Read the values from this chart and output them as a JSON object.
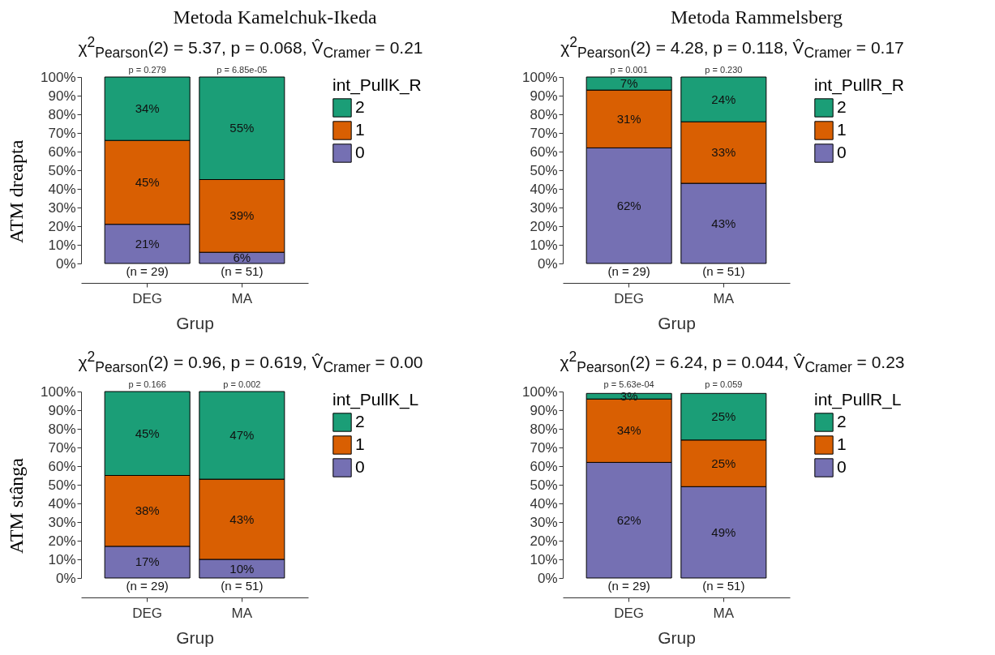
{
  "chart_data": [
    {
      "type": "bar",
      "title": "Metoda Kamelchuk-Ikeda",
      "subtitle": "χ$^{2}$$_{Pearson}$(2) = 5.37, p = 0.068, V̂$_{Cramer}$ = 0.21",
      "ylabel": "ATM dreapta",
      "xlabel": "Grup",
      "legend_title": "int_PullK_R",
      "legend": "right",
      "stacked": true,
      "categories": [
        "DEG",
        "MA"
      ],
      "series": [
        {
          "name": "0",
          "color": "#7570b3",
          "values": [
            21,
            6
          ],
          "value_labels": [
            "21%",
            "6%"
          ]
        },
        {
          "name": "1",
          "color": "#d95f02",
          "values": [
            45,
            39
          ],
          "value_labels": [
            "45%",
            "39%"
          ]
        },
        {
          "name": "2",
          "color": "#1b9e77",
          "values": [
            34,
            55
          ],
          "value_labels": [
            "34%",
            "55%"
          ]
        }
      ],
      "ylim": [
        0,
        100
      ],
      "yticks": [
        {
          "value": 0,
          "label": "0%"
        },
        {
          "value": 10,
          "label": "10%"
        },
        {
          "value": 20,
          "label": "20%"
        },
        {
          "value": 30,
          "label": "30%"
        },
        {
          "value": 40,
          "label": "40%"
        },
        {
          "value": 50,
          "label": "50%"
        },
        {
          "value": 60,
          "label": "60%"
        },
        {
          "value": 70,
          "label": "70%"
        },
        {
          "value": 80,
          "label": "80%"
        },
        {
          "value": 90,
          "label": "90%"
        },
        {
          "value": 100,
          "label": "100%"
        }
      ],
      "annotations": [
        {
          "text": "p = 0.279",
          "x": "DEG",
          "y": 100
        },
        {
          "text": "p = 6.85e-05",
          "x": "MA",
          "y": 100
        },
        {
          "text": "(n = 29)",
          "x": "DEG",
          "y": 0
        },
        {
          "text": "(n = 51)",
          "x": "MA",
          "y": 0
        }
      ]
    },
    {
      "type": "bar",
      "title": "Metoda Rammelsberg",
      "subtitle": "χ$^{2}$$_{Pearson}$(2) = 4.28, p = 0.118, V̂$_{Cramer}$ = 0.17",
      "xlabel": "Grup",
      "legend_title": "int_PullR_R",
      "legend": "right",
      "stacked": true,
      "categories": [
        "DEG",
        "MA"
      ],
      "series": [
        {
          "name": "0",
          "color": "#7570b3",
          "values": [
            62,
            43
          ],
          "value_labels": [
            "62%",
            "43%"
          ]
        },
        {
          "name": "1",
          "color": "#d95f02",
          "values": [
            31,
            33
          ],
          "value_labels": [
            "31%",
            "33%"
          ]
        },
        {
          "name": "2",
          "color": "#1b9e77",
          "values": [
            7,
            24
          ],
          "value_labels": [
            "7%",
            "24%"
          ]
        }
      ],
      "ylim": [
        0,
        100
      ],
      "yticks": [
        {
          "value": 0,
          "label": "0%"
        },
        {
          "value": 10,
          "label": "10%"
        },
        {
          "value": 20,
          "label": "20%"
        },
        {
          "value": 30,
          "label": "30%"
        },
        {
          "value": 40,
          "label": "40%"
        },
        {
          "value": 50,
          "label": "50%"
        },
        {
          "value": 60,
          "label": "60%"
        },
        {
          "value": 70,
          "label": "70%"
        },
        {
          "value": 80,
          "label": "80%"
        },
        {
          "value": 90,
          "label": "90%"
        },
        {
          "value": 100,
          "label": "100%"
        }
      ],
      "annotations": [
        {
          "text": "p = 0.001",
          "x": "DEG",
          "y": 100
        },
        {
          "text": "p = 0.230",
          "x": "MA",
          "y": 100
        },
        {
          "text": "(n = 29)",
          "x": "DEG",
          "y": 0
        },
        {
          "text": "(n = 51)",
          "x": "MA",
          "y": 0
        }
      ]
    },
    {
      "type": "bar",
      "subtitle": "χ$^{2}$$_{Pearson}$(2) = 0.96, p = 0.619, V̂$_{Cramer}$ = 0.00",
      "ylabel": "ATM stânga",
      "xlabel": "Grup",
      "legend_title": "int_PullK_L",
      "legend": "right",
      "stacked": true,
      "categories": [
        "DEG",
        "MA"
      ],
      "series": [
        {
          "name": "0",
          "color": "#7570b3",
          "values": [
            17,
            10
          ],
          "value_labels": [
            "17%",
            "10%"
          ]
        },
        {
          "name": "1",
          "color": "#d95f02",
          "values": [
            38,
            43
          ],
          "value_labels": [
            "38%",
            "43%"
          ]
        },
        {
          "name": "2",
          "color": "#1b9e77",
          "values": [
            45,
            47
          ],
          "value_labels": [
            "45%",
            "47%"
          ]
        }
      ],
      "ylim": [
        0,
        100
      ],
      "yticks": [
        {
          "value": 0,
          "label": "0%"
        },
        {
          "value": 10,
          "label": "10%"
        },
        {
          "value": 20,
          "label": "20%"
        },
        {
          "value": 30,
          "label": "30%"
        },
        {
          "value": 40,
          "label": "40%"
        },
        {
          "value": 50,
          "label": "50%"
        },
        {
          "value": 60,
          "label": "60%"
        },
        {
          "value": 70,
          "label": "70%"
        },
        {
          "value": 80,
          "label": "80%"
        },
        {
          "value": 90,
          "label": "90%"
        },
        {
          "value": 100,
          "label": "100%"
        }
      ],
      "annotations": [
        {
          "text": "p = 0.166",
          "x": "DEG",
          "y": 100
        },
        {
          "text": "p = 0.002",
          "x": "MA",
          "y": 100
        },
        {
          "text": "(n = 29)",
          "x": "DEG",
          "y": 0
        },
        {
          "text": "(n = 51)",
          "x": "MA",
          "y": 0
        }
      ]
    },
    {
      "type": "bar",
      "subtitle": "χ$^{2}$$_{Pearson}$(2) = 6.24, p = 0.044, V̂$_{Cramer}$ = 0.23",
      "xlabel": "Grup",
      "legend_title": "int_PullR_L",
      "legend": "right",
      "stacked": true,
      "categories": [
        "DEG",
        "MA"
      ],
      "series": [
        {
          "name": "0",
          "color": "#7570b3",
          "values": [
            62,
            49
          ],
          "value_labels": [
            "62%",
            "49%"
          ]
        },
        {
          "name": "1",
          "color": "#d95f02",
          "values": [
            34,
            25
          ],
          "value_labels": [
            "34%",
            "25%"
          ]
        },
        {
          "name": "2",
          "color": "#1b9e77",
          "values": [
            3,
            25
          ],
          "value_labels": [
            "3%",
            "25%"
          ]
        }
      ],
      "ylim": [
        0,
        100
      ],
      "yticks": [
        {
          "value": 0,
          "label": "0%"
        },
        {
          "value": 10,
          "label": "10%"
        },
        {
          "value": 20,
          "label": "20%"
        },
        {
          "value": 30,
          "label": "30%"
        },
        {
          "value": 40,
          "label": "40%"
        },
        {
          "value": 50,
          "label": "50%"
        },
        {
          "value": 60,
          "label": "60%"
        },
        {
          "value": 70,
          "label": "70%"
        },
        {
          "value": 80,
          "label": "80%"
        },
        {
          "value": 90,
          "label": "90%"
        },
        {
          "value": 100,
          "label": "100%"
        }
      ],
      "annotations": [
        {
          "text": "p = 5.63e-04",
          "x": "DEG",
          "y": 100
        },
        {
          "text": "p = 0.059",
          "x": "MA",
          "y": 100
        },
        {
          "text": "(n = 29)",
          "x": "DEG",
          "y": 0
        },
        {
          "text": "(n = 51)",
          "x": "MA",
          "y": 0
        }
      ]
    }
  ]
}
